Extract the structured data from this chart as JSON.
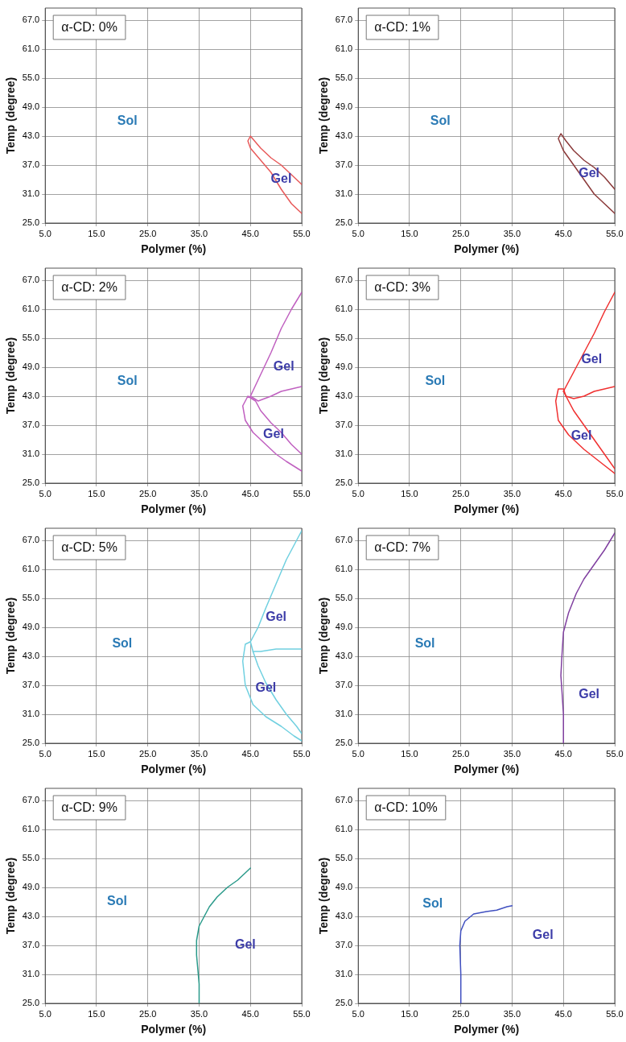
{
  "chart_data": [
    {
      "type": "line",
      "title": "α-CD: 0%",
      "xlabel": "Polymer (%)",
      "ylabel": "Temp (degree)",
      "xlim": [
        5,
        55
      ],
      "ylim": [
        25,
        69.5
      ],
      "xticks": [
        {
          "value": 5,
          "label": "5.0"
        },
        {
          "value": 15,
          "label": "15.0"
        },
        {
          "value": 25,
          "label": "25.0"
        },
        {
          "value": 35,
          "label": "35.0"
        },
        {
          "value": 45,
          "label": "45.0"
        },
        {
          "value": 55,
          "label": "55.0"
        }
      ],
      "yticks": [
        {
          "value": 25,
          "label": "25.0"
        },
        {
          "value": 31,
          "label": "31.0"
        },
        {
          "value": 37,
          "label": "37.0"
        },
        {
          "value": 43,
          "label": "43.0"
        },
        {
          "value": 49,
          "label": "49.0"
        },
        {
          "value": 55,
          "label": "55.0"
        },
        {
          "value": 61,
          "label": "61.0"
        },
        {
          "value": 67,
          "label": "67.0"
        }
      ],
      "grid": true,
      "series": [
        {
          "color": "#e85a5a",
          "x": [
            55,
            53,
            51,
            49,
            47,
            45,
            44.5,
            45,
            47,
            49,
            51,
            53,
            55
          ],
          "values": [
            33,
            35,
            37,
            38.5,
            40.5,
            43,
            42,
            40.5,
            38,
            35.5,
            32,
            29,
            27
          ]
        }
      ],
      "annotations": [
        "Sol",
        "Gel"
      ]
    },
    {
      "type": "line",
      "title": "α-CD: 1%",
      "xlabel": "Polymer (%)",
      "ylabel": "Temp (degree)",
      "xlim": [
        5,
        55
      ],
      "ylim": [
        25,
        69.5
      ],
      "xticks": [
        {
          "value": 5,
          "label": "5.0"
        },
        {
          "value": 15,
          "label": "15.0"
        },
        {
          "value": 25,
          "label": "25.0"
        },
        {
          "value": 35,
          "label": "35.0"
        },
        {
          "value": 45,
          "label": "45.0"
        },
        {
          "value": 55,
          "label": "55.0"
        }
      ],
      "yticks": [
        {
          "value": 25,
          "label": "25.0"
        },
        {
          "value": 31,
          "label": "31.0"
        },
        {
          "value": 37,
          "label": "37.0"
        },
        {
          "value": 43,
          "label": "43.0"
        },
        {
          "value": 49,
          "label": "49.0"
        },
        {
          "value": 55,
          "label": "55.0"
        },
        {
          "value": 61,
          "label": "61.0"
        },
        {
          "value": 67,
          "label": "67.0"
        }
      ],
      "grid": true,
      "series": [
        {
          "color": "#8b3a3a",
          "x": [
            55,
            53,
            51,
            49,
            47,
            45.5,
            44.5,
            44,
            45,
            47,
            49,
            51,
            53,
            55
          ],
          "values": [
            32,
            34.5,
            36.5,
            38,
            40,
            42,
            43.5,
            42.5,
            40,
            37,
            34,
            31,
            29,
            27
          ]
        }
      ],
      "annotations": [
        "Sol",
        "Gel"
      ]
    },
    {
      "type": "line",
      "title": "α-CD: 2%",
      "xlabel": "Polymer (%)",
      "ylabel": "Temp (degree)",
      "xlim": [
        5,
        55
      ],
      "ylim": [
        25,
        69.5
      ],
      "xticks": [
        {
          "value": 5,
          "label": "5.0"
        },
        {
          "value": 15,
          "label": "15.0"
        },
        {
          "value": 25,
          "label": "25.0"
        },
        {
          "value": 35,
          "label": "35.0"
        },
        {
          "value": 45,
          "label": "45.0"
        },
        {
          "value": 55,
          "label": "55.0"
        }
      ],
      "yticks": [
        {
          "value": 25,
          "label": "25.0"
        },
        {
          "value": 31,
          "label": "31.0"
        },
        {
          "value": 37,
          "label": "37.0"
        },
        {
          "value": 43,
          "label": "43.0"
        },
        {
          "value": 49,
          "label": "49.0"
        },
        {
          "value": 55,
          "label": "55.0"
        },
        {
          "value": 61,
          "label": "61.0"
        },
        {
          "value": 67,
          "label": "67.0"
        }
      ],
      "grid": true,
      "series": [
        {
          "color": "#c060c0",
          "x": [
            55,
            53,
            51,
            49,
            47,
            45
          ],
          "values": [
            64.5,
            61,
            57,
            52,
            47.5,
            43
          ]
        },
        {
          "color": "#c060c0",
          "x": [
            45,
            46.5,
            49,
            51,
            53,
            55
          ],
          "values": [
            43,
            42,
            43,
            44,
            44.5,
            45
          ]
        },
        {
          "color": "#c060c0",
          "x": [
            55,
            53,
            51,
            49,
            47,
            46,
            44.5,
            43.5,
            44,
            45.5,
            48,
            50,
            52,
            55
          ],
          "values": [
            31,
            33,
            35.5,
            37.5,
            40,
            42,
            43,
            41,
            38,
            35.5,
            33,
            31,
            29.5,
            27.5
          ]
        }
      ],
      "annotations": [
        "Sol",
        "Gel",
        "Gel"
      ]
    },
    {
      "type": "line",
      "title": "α-CD: 3%",
      "xlabel": "Polymer (%)",
      "ylabel": "Temp (degree)",
      "xlim": [
        5,
        55
      ],
      "ylim": [
        25,
        69.5
      ],
      "xticks": [
        {
          "value": 5,
          "label": "5.0"
        },
        {
          "value": 15,
          "label": "15.0"
        },
        {
          "value": 25,
          "label": "25.0"
        },
        {
          "value": 35,
          "label": "35.0"
        },
        {
          "value": 45,
          "label": "45.0"
        },
        {
          "value": 55,
          "label": "55.0"
        }
      ],
      "yticks": [
        {
          "value": 25,
          "label": "25.0"
        },
        {
          "value": 31,
          "label": "31.0"
        },
        {
          "value": 37,
          "label": "37.0"
        },
        {
          "value": 43,
          "label": "43.0"
        },
        {
          "value": 49,
          "label": "49.0"
        },
        {
          "value": 55,
          "label": "55.0"
        },
        {
          "value": 61,
          "label": "61.0"
        },
        {
          "value": 67,
          "label": "67.0"
        }
      ],
      "grid": true,
      "series": [
        {
          "color": "#f03030",
          "x": [
            55,
            53,
            51,
            49,
            47,
            45.5,
            45
          ],
          "values": [
            64.5,
            60.5,
            56,
            52,
            48,
            45,
            44
          ]
        },
        {
          "color": "#f03030",
          "x": [
            45,
            45.5,
            47,
            49,
            51,
            53,
            55
          ],
          "values": [
            44,
            43,
            42.5,
            43,
            44,
            44.5,
            45
          ]
        },
        {
          "color": "#f03030",
          "x": [
            55,
            53,
            51,
            49,
            47,
            45.5,
            45,
            44,
            43.5,
            44,
            46,
            49,
            52,
            55
          ],
          "values": [
            28,
            31,
            34,
            37,
            40,
            43,
            44.5,
            44.5,
            42,
            38,
            35,
            32,
            29.5,
            27
          ]
        }
      ],
      "annotations": [
        "Sol",
        "Gel",
        "Gel"
      ]
    },
    {
      "type": "line",
      "title": "α-CD: 5%",
      "xlabel": "Polymer (%)",
      "ylabel": "Temp (degree)",
      "xlim": [
        5,
        55
      ],
      "ylim": [
        25,
        69.5
      ],
      "xticks": [
        {
          "value": 5,
          "label": "5.0"
        },
        {
          "value": 15,
          "label": "15.0"
        },
        {
          "value": 25,
          "label": "25.0"
        },
        {
          "value": 35,
          "label": "35.0"
        },
        {
          "value": 45,
          "label": "45.0"
        },
        {
          "value": 55,
          "label": "55.0"
        }
      ],
      "yticks": [
        {
          "value": 25,
          "label": "25.0"
        },
        {
          "value": 31,
          "label": "31.0"
        },
        {
          "value": 37,
          "label": "37.0"
        },
        {
          "value": 43,
          "label": "43.0"
        },
        {
          "value": 49,
          "label": "49.0"
        },
        {
          "value": 55,
          "label": "55.0"
        },
        {
          "value": 61,
          "label": "61.0"
        },
        {
          "value": 67,
          "label": "67.0"
        }
      ],
      "grid": true,
      "series": [
        {
          "color": "#70d0e0",
          "x": [
            55,
            54,
            52,
            50,
            48,
            46.5,
            45
          ],
          "values": [
            69,
            67,
            63,
            58,
            53,
            49,
            46
          ]
        },
        {
          "color": "#70d0e0",
          "x": [
            45,
            45.5,
            47,
            50,
            55
          ],
          "values": [
            46,
            44,
            44,
            44.5,
            44.5
          ]
        },
        {
          "color": "#70d0e0",
          "x": [
            55,
            54,
            52,
            50,
            48,
            46.5,
            45.5
          ],
          "values": [
            27,
            28.5,
            31,
            34,
            37.5,
            41,
            44
          ]
        },
        {
          "color": "#70d0e0",
          "x": [
            45,
            44,
            43.5,
            44,
            45.5,
            48,
            51,
            53.5,
            55
          ],
          "values": [
            46,
            45.5,
            42,
            37,
            33,
            30.5,
            28.5,
            26.5,
            25.5
          ]
        }
      ],
      "annotations": [
        "Sol",
        "Gel",
        "Gel"
      ]
    },
    {
      "type": "line",
      "title": "α-CD: 7%",
      "xlabel": "Polymer (%)",
      "ylabel": "Temp (degree)",
      "xlim": [
        5,
        55
      ],
      "ylim": [
        25,
        69.5
      ],
      "xticks": [
        {
          "value": 5,
          "label": "5.0"
        },
        {
          "value": 15,
          "label": "15.0"
        },
        {
          "value": 25,
          "label": "25.0"
        },
        {
          "value": 35,
          "label": "35.0"
        },
        {
          "value": 45,
          "label": "45.0"
        },
        {
          "value": 55,
          "label": "55.0"
        }
      ],
      "yticks": [
        {
          "value": 25,
          "label": "25.0"
        },
        {
          "value": 31,
          "label": "31.0"
        },
        {
          "value": 37,
          "label": "37.0"
        },
        {
          "value": 43,
          "label": "43.0"
        },
        {
          "value": 49,
          "label": "49.0"
        },
        {
          "value": 55,
          "label": "55.0"
        },
        {
          "value": 61,
          "label": "61.0"
        },
        {
          "value": 67,
          "label": "67.0"
        }
      ],
      "grid": true,
      "series": [
        {
          "color": "#8040a0",
          "x": [
            45,
            45,
            44.7,
            44.5,
            44.7,
            45,
            46,
            47.5,
            49,
            51,
            53,
            55
          ],
          "values": [
            25,
            31,
            36,
            39,
            43,
            48,
            52,
            56,
            59,
            62,
            65,
            68.5
          ]
        }
      ],
      "annotations": [
        "Sol",
        "Gel"
      ]
    },
    {
      "type": "line",
      "title": "α-CD: 9%",
      "xlabel": "Polymer (%)",
      "ylabel": "Temp (degree)",
      "xlim": [
        5,
        55
      ],
      "ylim": [
        25,
        69.5
      ],
      "xticks": [
        {
          "value": 5,
          "label": "5.0"
        },
        {
          "value": 15,
          "label": "15.0"
        },
        {
          "value": 25,
          "label": "25.0"
        },
        {
          "value": 35,
          "label": "35.0"
        },
        {
          "value": 45,
          "label": "45.0"
        },
        {
          "value": 55,
          "label": "55.0"
        }
      ],
      "yticks": [
        {
          "value": 25,
          "label": "25.0"
        },
        {
          "value": 31,
          "label": "31.0"
        },
        {
          "value": 37,
          "label": "37.0"
        },
        {
          "value": 43,
          "label": "43.0"
        },
        {
          "value": 49,
          "label": "49.0"
        },
        {
          "value": 55,
          "label": "55.0"
        },
        {
          "value": 61,
          "label": "61.0"
        },
        {
          "value": 67,
          "label": "67.0"
        }
      ],
      "grid": true,
      "series": [
        {
          "color": "#2a9a8a",
          "x": [
            35,
            35,
            34.5,
            34.5,
            35,
            36,
            37,
            38.5,
            40.5,
            42.5,
            44,
            45
          ],
          "values": [
            25,
            29,
            35,
            38,
            41,
            43,
            45,
            47,
            49,
            50.5,
            52,
            53
          ]
        }
      ],
      "annotations": [
        "Sol",
        "Gel"
      ]
    },
    {
      "type": "line",
      "title": "α-CD: 10%",
      "xlabel": "Polymer (%)",
      "ylabel": "Temp (degree)",
      "xlim": [
        5,
        55
      ],
      "ylim": [
        25,
        69.5
      ],
      "xticks": [
        {
          "value": 5,
          "label": "5.0"
        },
        {
          "value": 15,
          "label": "15.0"
        },
        {
          "value": 25,
          "label": "25.0"
        },
        {
          "value": 35,
          "label": "35.0"
        },
        {
          "value": 45,
          "label": "45.0"
        },
        {
          "value": 55,
          "label": "55.0"
        }
      ],
      "yticks": [
        {
          "value": 25,
          "label": "25.0"
        },
        {
          "value": 31,
          "label": "31.0"
        },
        {
          "value": 37,
          "label": "37.0"
        },
        {
          "value": 43,
          "label": "43.0"
        },
        {
          "value": 49,
          "label": "49.0"
        },
        {
          "value": 55,
          "label": "55.0"
        },
        {
          "value": 61,
          "label": "61.0"
        },
        {
          "value": 67,
          "label": "67.0"
        }
      ],
      "grid": true,
      "series": [
        {
          "color": "#4050c0",
          "x": [
            25,
            25,
            24.8,
            25,
            25.8,
            27.5,
            30,
            32,
            34,
            35
          ],
          "values": [
            25,
            31,
            37,
            40,
            42,
            43.5,
            44,
            44.3,
            45,
            45.2
          ]
        }
      ],
      "annotations": [
        "Sol",
        "Gel"
      ]
    }
  ]
}
